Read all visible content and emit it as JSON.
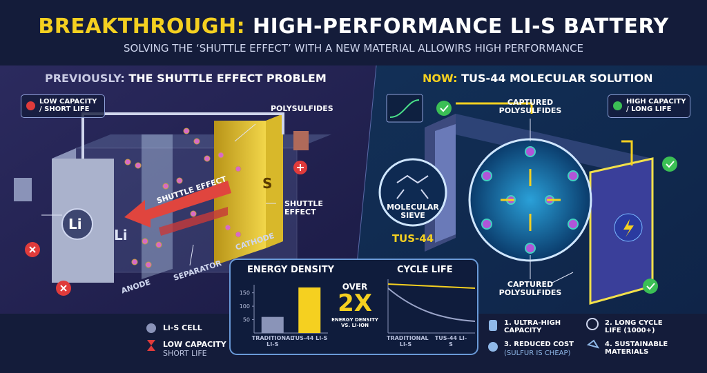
{
  "header": {
    "title_lead": "BREAKTHROUGH:",
    "title_rest": "HIGH-PERFORMANCE LI-S BATTERY",
    "subtitle": "SOLVING THE ‘SHUTTLE EFFECT’ WITH A NEW MATERIAL ALLOWIRS HIGH PERFORMANCE"
  },
  "previous": {
    "heading_lead": "PREVIOUSLY:",
    "heading_rest": "THE SHUTTLE EFFECT PROBLEM",
    "status": "LOW CAPACITY / SHORT LIFE",
    "polysulfides": "POLYSULFIDES",
    "arrow_label": "SHUTTLE EFFECT",
    "shuttle_label": "SHUTTLE EFFECT",
    "anode_symbol": "Li",
    "anode_face": "Li",
    "cathode_symbol": "S",
    "anode": "ANODE",
    "separator": "SEPARATOR",
    "cathode": "CATHODE"
  },
  "now": {
    "heading_lead": "NOW:",
    "heading_rest": "TUS-44 MOLECULAR SOLUTION",
    "status": "HIGH CAPACITY / LONG LIFE",
    "captured_top": "CAPTURED POLYSULFIDES",
    "captured_bottom": "CAPTURED POLYSULFIDES",
    "sieve": "MOLECULAR SIEVE",
    "material": "TUS-44"
  },
  "energy_chart": {
    "title": "ENERGY DENSITY",
    "categories": [
      "TRADITIONAL LI-S",
      "TUS-44 LI-S"
    ],
    "values": [
      60,
      170
    ],
    "colors": [
      "#8a94b8",
      "#f5d020"
    ],
    "ylim": [
      0,
      180
    ],
    "yticks": [
      50,
      100,
      150
    ]
  },
  "comparison": {
    "over": "OVER",
    "factor": "2X",
    "note": "ENERGY DENSITY VS. LI-ION"
  },
  "cycle_chart": {
    "title": "CYCLE LIFE",
    "categories": [
      "TRADITIONAL LI-S",
      "TUS-44 LI-S"
    ]
  },
  "legend": {
    "cell": "Li-S CELL",
    "low": "LOW CAPACITY",
    "short": "SHORT LIFE"
  },
  "benefits": [
    "1. ULTRA-HIGH CAPACITY",
    "2. LONG CYCLE LIFE (1000+)",
    "3. REDUCED COST",
    "(SULFUR IS CHEAP)",
    "4. SUSTAINABLE MATERIALS"
  ]
}
